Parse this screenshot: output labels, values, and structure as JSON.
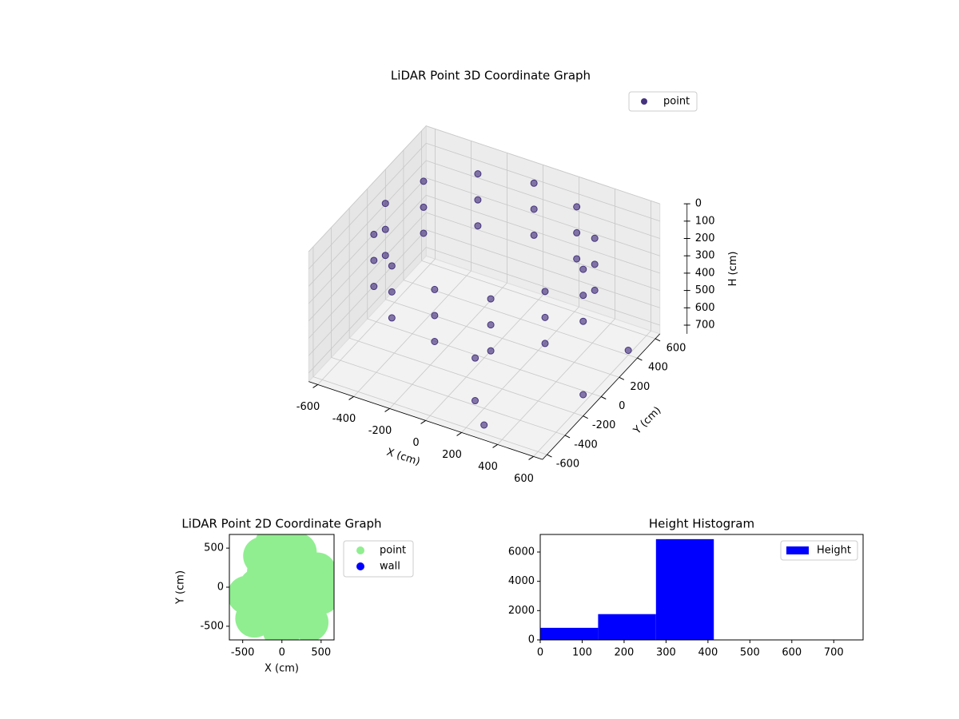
{
  "chart_data": [
    {
      "type": "scatter3d",
      "title": "LiDAR Point 3D Coordinate Graph",
      "xlabel": "X (cm)",
      "ylabel": "Y (cm)",
      "zlabel": "H (cm)",
      "series": [
        {
          "name": "point",
          "color": "#46337e",
          "x": [
            550,
            476,
            275,
            0,
            -275,
            -476,
            -550,
            -476,
            -275,
            0,
            275,
            476,
            550,
            476,
            275,
            0,
            -275,
            -476,
            -550,
            -476,
            -275,
            0,
            275,
            476,
            550,
            476,
            275,
            0,
            -275,
            -476,
            -550,
            -476,
            -275,
            0,
            275,
            476,
            200,
            300,
            600,
            650,
            100
          ],
          "y": [
            0,
            275,
            476,
            550,
            476,
            275,
            0,
            -275,
            -476,
            -550,
            -476,
            -275,
            0,
            275,
            476,
            550,
            476,
            275,
            0,
            -275,
            -476,
            -550,
            -476,
            -275,
            0,
            275,
            476,
            550,
            476,
            275,
            0,
            -275,
            -476,
            -550,
            -476,
            -275,
            -500,
            -600,
            -100,
            300,
            -300
          ],
          "z": [
            50,
            50,
            50,
            50,
            50,
            50,
            50,
            50,
            50,
            50,
            50,
            50,
            200,
            200,
            200,
            200,
            200,
            200,
            200,
            200,
            200,
            200,
            200,
            200,
            350,
            350,
            350,
            350,
            350,
            350,
            350,
            350,
            350,
            350,
            350,
            350,
            650,
            700,
            700,
            650,
            550
          ]
        }
      ],
      "xlim": [
        -650,
        650
      ],
      "ylim": [
        -650,
        650
      ],
      "zlim": [
        0,
        750
      ],
      "z_inverted": true,
      "xticks": [
        -600,
        -400,
        -200,
        0,
        200,
        400,
        600
      ],
      "yticks": [
        -600,
        -400,
        -200,
        0,
        200,
        400,
        600
      ],
      "zticks": [
        0,
        100,
        200,
        300,
        400,
        500,
        600,
        700
      ],
      "grid": true,
      "legend": "upper right"
    },
    {
      "type": "scatter",
      "title": "LiDAR Point 2D Coordinate Graph",
      "xlabel": "X (cm)",
      "ylabel": "Y (cm)",
      "series": [
        {
          "name": "point",
          "color": "#90ee90",
          "x": [
            0,
            300,
            -300,
            0,
            0,
            200,
            -250,
            -450,
            -350,
            0,
            350,
            450,
            200,
            -200,
            200,
            -200,
            500,
            100,
            -100
          ],
          "y": [
            0,
            0,
            0,
            300,
            -300,
            450,
            400,
            -100,
            -400,
            -550,
            -450,
            200,
            -200,
            -200,
            200,
            200,
            -100,
            550,
            550
          ]
        },
        {
          "name": "wall",
          "color": "#0000ff",
          "x": [],
          "y": []
        }
      ],
      "xlim": [
        -670,
        665
      ],
      "ylim": [
        -675,
        675
      ],
      "xticks": [
        -500,
        0,
        500
      ],
      "yticks": [
        -500,
        0,
        500
      ],
      "legend": "outside right"
    },
    {
      "type": "histogram",
      "title": "Height Histogram",
      "name": "Height",
      "color": "#0000ff",
      "bins": [
        0,
        138,
        276,
        414,
        552,
        690,
        770
      ],
      "counts": [
        825,
        1760,
        6880,
        0,
        0,
        0
      ],
      "xlim": [
        0,
        770
      ],
      "ylim": [
        0,
        7200
      ],
      "xticks": [
        0,
        100,
        200,
        300,
        400,
        500,
        600,
        700
      ],
      "yticks": [
        0,
        2000,
        4000,
        6000
      ],
      "legend": "upper right"
    }
  ]
}
